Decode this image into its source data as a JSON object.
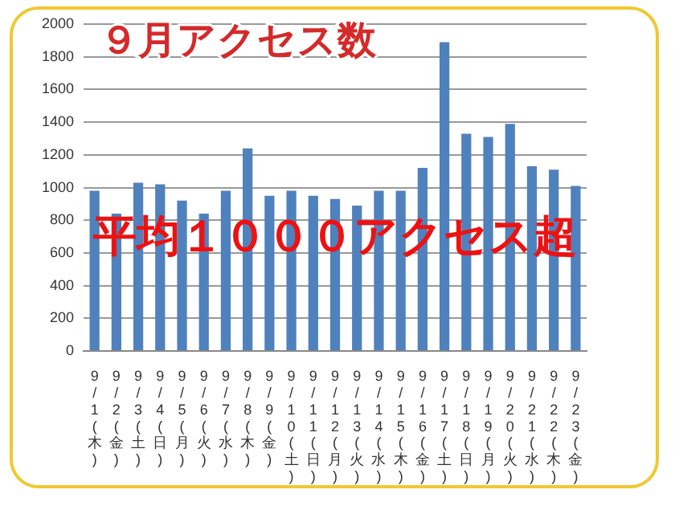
{
  "chart_data": {
    "type": "bar",
    "title": "９月アクセス数",
    "categories": [
      "9/1(木)",
      "9/2(金)",
      "9/3(土)",
      "9/4(日)",
      "9/5(月)",
      "9/6(火)",
      "9/7(水)",
      "9/8(木)",
      "9/9(金)",
      "9/10(土)",
      "9/11(日)",
      "9/12(月)",
      "9/13(火)",
      "9/14(水)",
      "9/15(木)",
      "9/16(金)",
      "9/17(土)",
      "9/18(日)",
      "9/19(月)",
      "9/20(火)",
      "9/21(水)",
      "9/22(木)",
      "9/23(金)"
    ],
    "values": [
      980,
      840,
      1030,
      1020,
      920,
      840,
      980,
      1240,
      950,
      980,
      950,
      930,
      890,
      980,
      980,
      1120,
      1890,
      1330,
      1310,
      1390,
      1130,
      1110,
      1010
    ],
    "color": "#4f81bd",
    "ylim": [
      0,
      2000
    ],
    "yticks": [
      0,
      200,
      400,
      600,
      800,
      1000,
      1200,
      1400,
      1600,
      1800,
      2000
    ],
    "grid": "y",
    "annotations": [
      "平均１０００アクセス超"
    ]
  }
}
